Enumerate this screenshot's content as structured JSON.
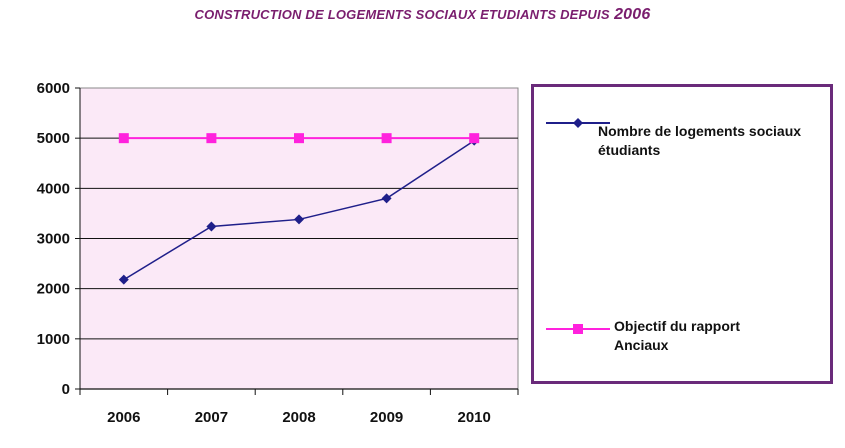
{
  "title": {
    "text": "CONSTRUCTION DE LOGEMENTS SOCIAUX ETUDIANTS DEPUIS",
    "year": "2006"
  },
  "chart_data": {
    "type": "line",
    "x": [
      "2006",
      "2007",
      "2008",
      "2009",
      "2010"
    ],
    "ylim": [
      0,
      6000
    ],
    "yticks": [
      0,
      1000,
      2000,
      3000,
      4000,
      5000,
      6000
    ],
    "grid": true,
    "legend_position": "right",
    "colors": {
      "plot_background": "#fbe9f7",
      "series1": "#1f1f8a",
      "series2": "#ff22dd",
      "legend_border": "#6a2a7a",
      "title": "#7a1e6e"
    },
    "series": [
      {
        "name": "Nombre de logements sociaux étudiants",
        "marker": "diamond",
        "values": [
          2180,
          3240,
          3380,
          3800,
          4950
        ]
      },
      {
        "name": "Objectif du rapport Anciaux",
        "marker": "square",
        "values": [
          5000,
          5000,
          5000,
          5000,
          5000
        ]
      }
    ]
  }
}
